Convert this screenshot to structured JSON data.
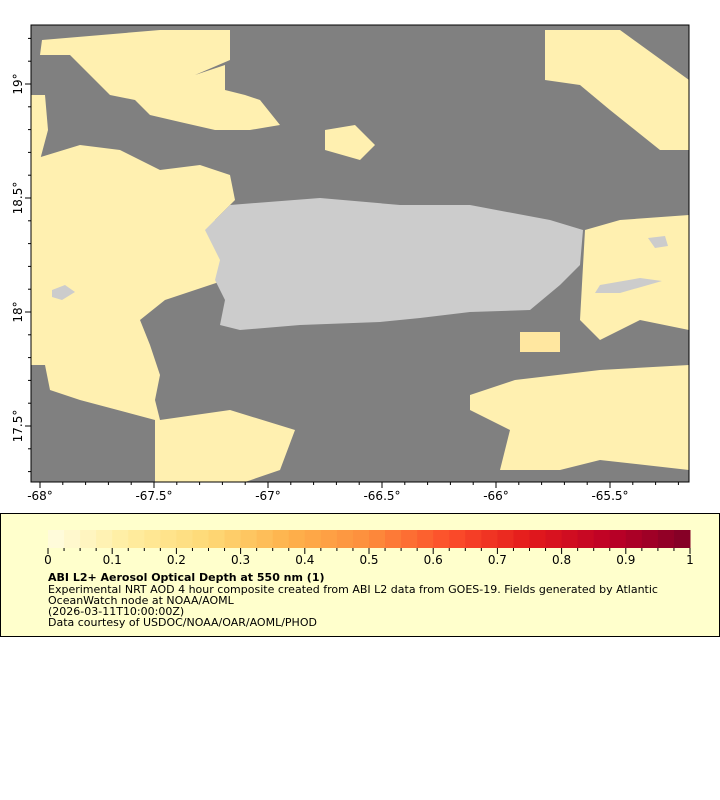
{
  "map": {
    "colors": {
      "no_data": "#808080",
      "land": "#cccccc",
      "aod_low": "#fff3b8",
      "aod_mid": "#ffe9a0"
    },
    "lon_ticks": [
      "-68°",
      "-67.5°",
      "-67°",
      "-66.5°",
      "-66°",
      "-65.5°"
    ],
    "lat_ticks": [
      "19°",
      "18.5°",
      "18°",
      "17.5°"
    ]
  },
  "legend": {
    "colorbar": {
      "min": 0,
      "max": 1,
      "palette": [
        "#fffde0",
        "#ffeda0",
        "#fed976",
        "#feb24c",
        "#fd8d3c",
        "#fc4e2a",
        "#e31a1c",
        "#bd0026",
        "#800026"
      ]
    },
    "tick_labels": [
      "0",
      "0.1",
      "0.2",
      "0.3",
      "0.4",
      "0.5",
      "0.6",
      "0.7",
      "0.8",
      "0.9",
      "1"
    ],
    "title": "ABI L2+ Aerosol Optical Depth at 550 nm (1)",
    "line1": "Experimental NRT AOD 4 hour composite created from ABI L2 data from GOES-19. Fields generated by Atlantic",
    "line2": "OceanWatch node at NOAA/AOML",
    "line3": "(2026-03-11T10:00:00Z)",
    "line4": "Data courtesy of USDOC/NOAA/OAR/AOML/PHOD"
  }
}
